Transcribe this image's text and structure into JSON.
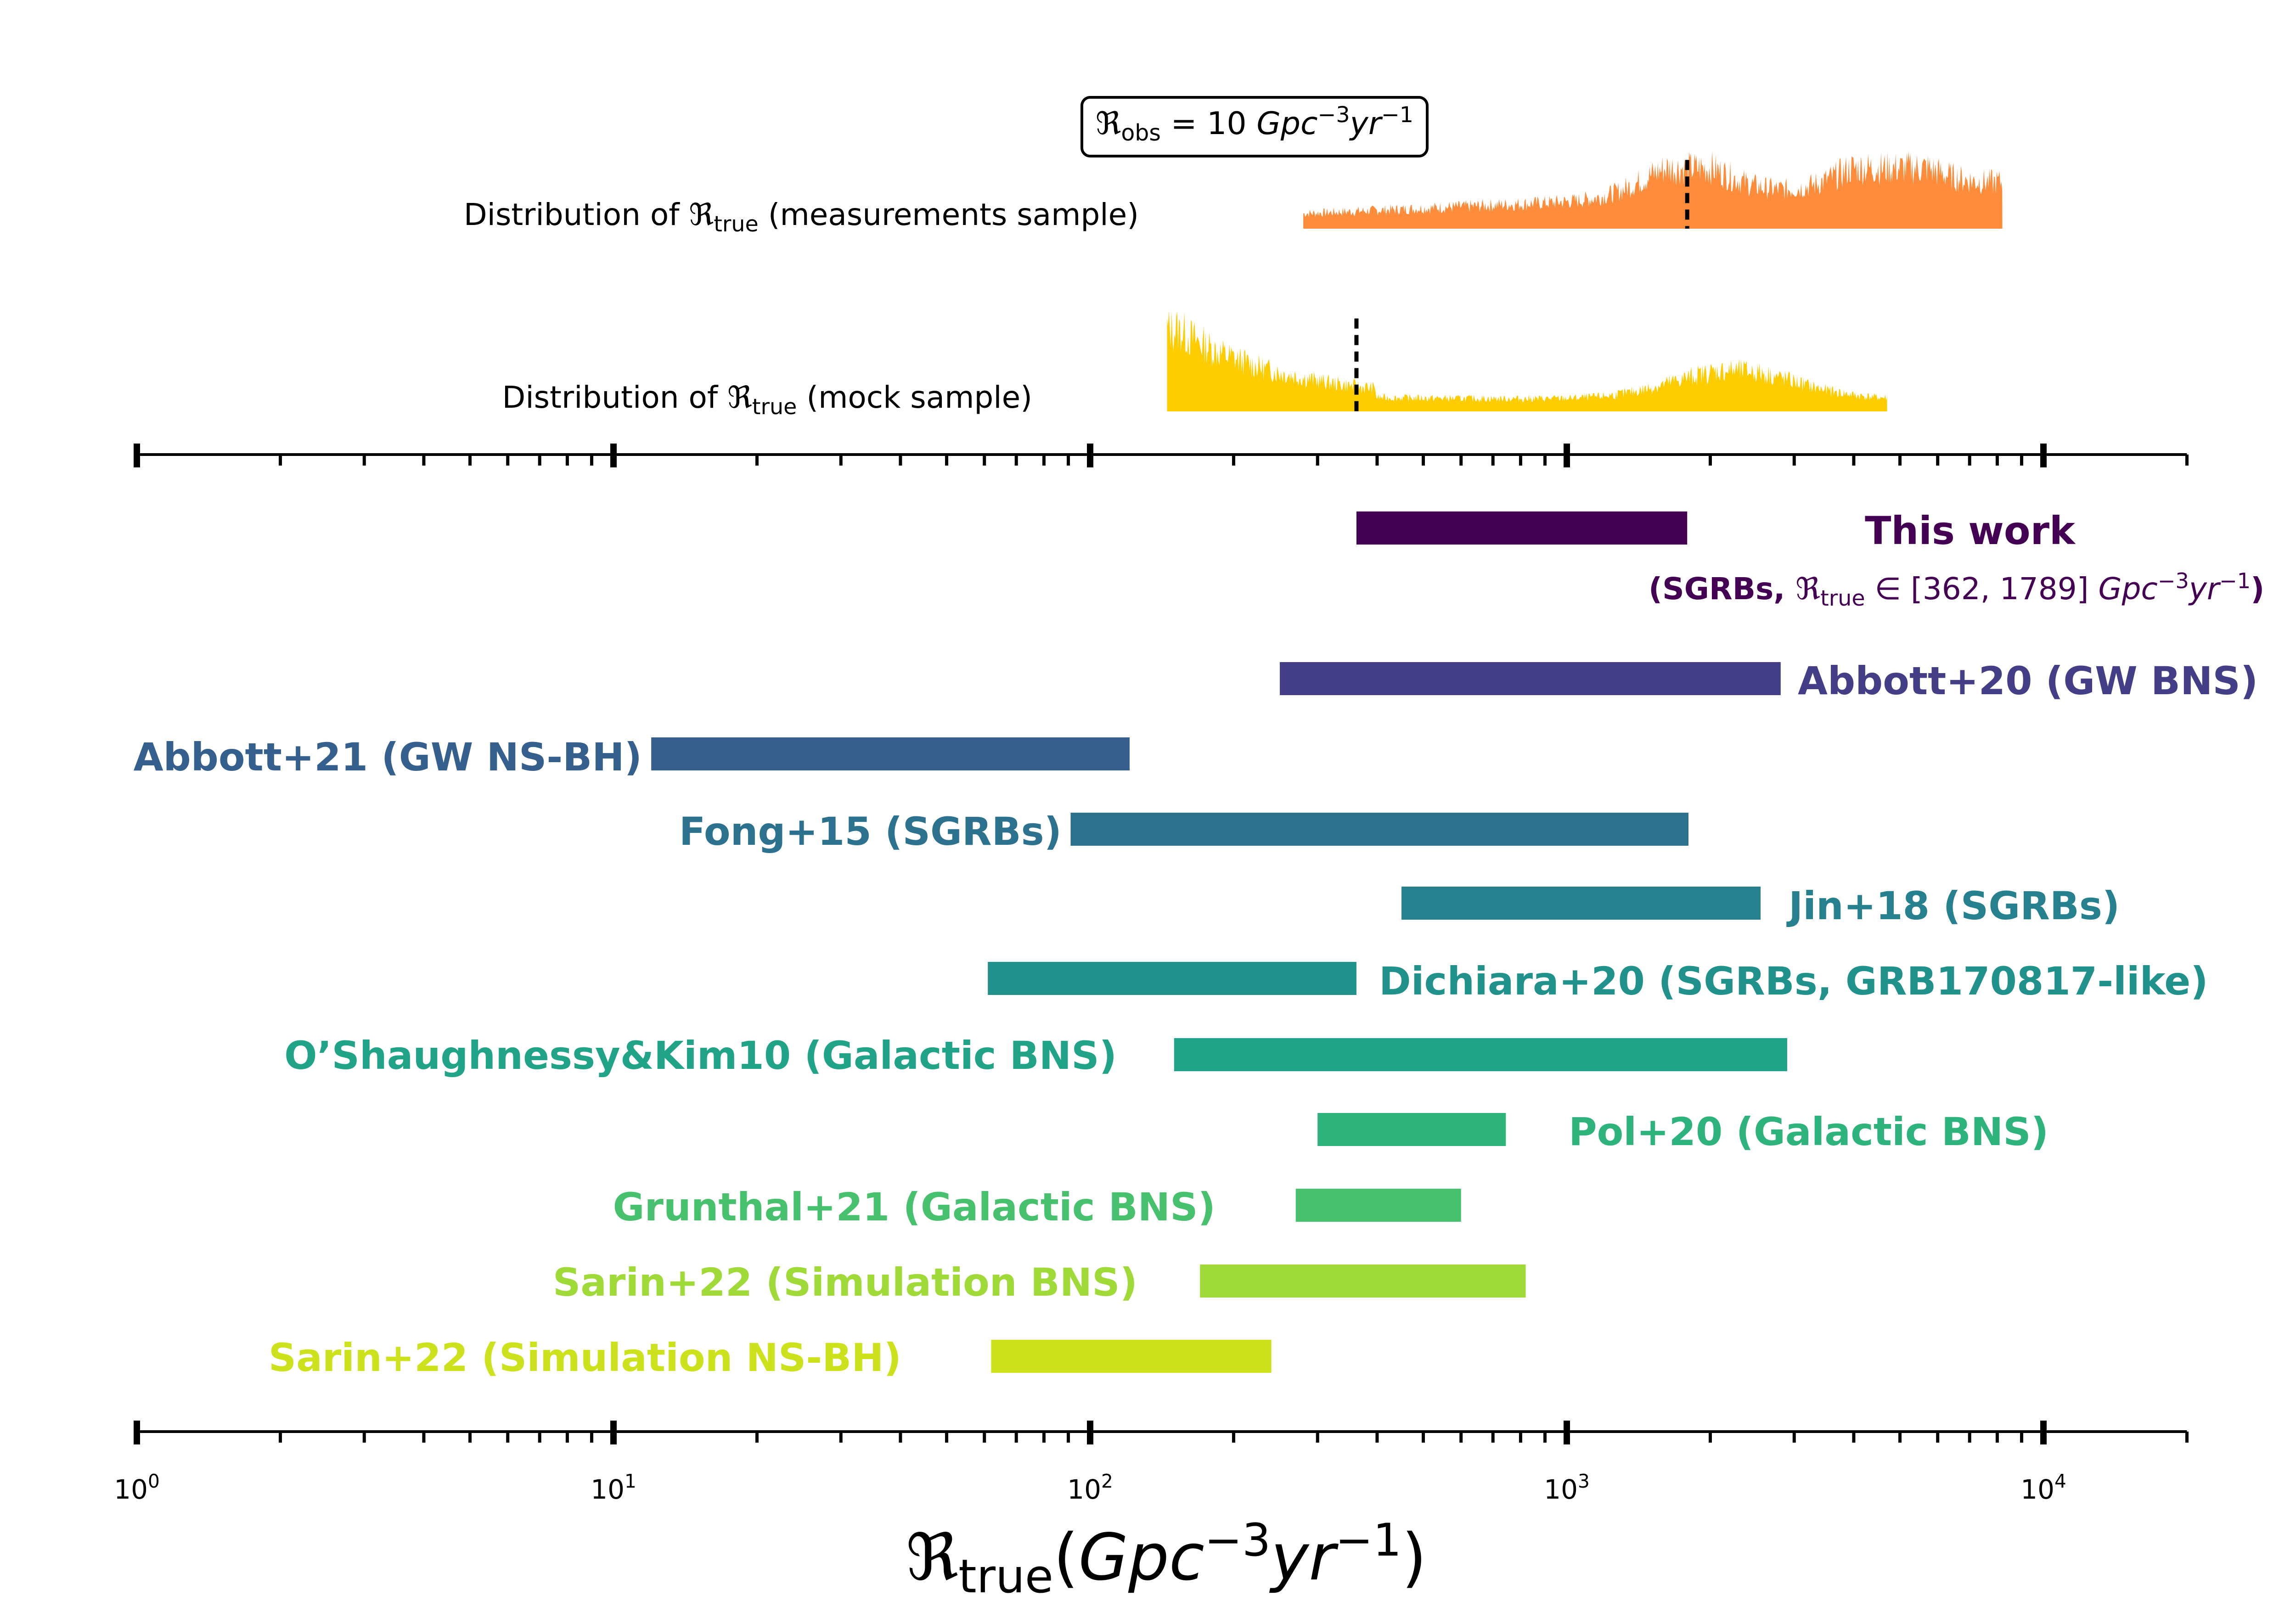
{
  "chart_data": {
    "type": "range_bar",
    "x_scale": "log",
    "xlim": [
      1,
      20000
    ],
    "xlabel": {
      "symbol": "ℜ",
      "subscript": "true",
      "unit_open": "(Gpc",
      "exp1": "−3",
      "unit_mid": "yr",
      "exp2": "−1",
      "unit_close": ")"
    },
    "tick_labels": [
      {
        "value": 1,
        "base": "10",
        "exp": "0"
      },
      {
        "value": 10,
        "base": "10",
        "exp": "1"
      },
      {
        "value": 100,
        "base": "10",
        "exp": "2"
      },
      {
        "value": 1000,
        "base": "10",
        "exp": "3"
      },
      {
        "value": 10000,
        "base": "10",
        "exp": "4"
      }
    ],
    "annotation": {
      "symbol": "ℜ",
      "subscript": "obs",
      "text": " = 10 ",
      "unit1": "Gpc",
      "exp1": "−3",
      "unit2": "yr",
      "exp2": "−1"
    },
    "distributions": [
      {
        "label_pre": "Distribution of ",
        "symbol": "ℜ",
        "subscript": "true",
        "label_post": " (measurements sample)",
        "range": [
          280,
          8200
        ],
        "marker": 1789,
        "color": "#ff8c3a"
      },
      {
        "label_pre": "Distribution of ",
        "symbol": "ℜ",
        "subscript": "true",
        "label_post": " (mock sample)",
        "range": [
          145,
          4700
        ],
        "marker": 362,
        "color": "#ffcc00"
      }
    ],
    "bars": [
      {
        "label": "This work",
        "low": 362,
        "high": 1789,
        "color": "#440154",
        "label_pos": "right"
      },
      {
        "label": "Abbott+20 (GW BNS)",
        "low": 250,
        "high": 2810,
        "color": "#433e85",
        "label_pos": "right"
      },
      {
        "label": "Abbott+21 (GW NS-BH)",
        "low": 12,
        "high": 121,
        "color": "#355f8d",
        "label_pos": "left"
      },
      {
        "label": "Fong+15 (SGRBs)",
        "low": 91,
        "high": 1800,
        "color": "#2c728e",
        "label_pos": "left"
      },
      {
        "label": "Jin+18 (SGRBs)",
        "low": 450,
        "high": 2550,
        "color": "#27808e",
        "label_pos": "right"
      },
      {
        "label": "Dichiara+20 (SGRBs, GRB170817-like)",
        "low": 61,
        "high": 362,
        "color": "#21918c",
        "label_pos": "right"
      },
      {
        "label": "O’Shaughnessy&Kim10 (Galactic BNS)",
        "low": 150,
        "high": 2900,
        "color": "#20a386",
        "label_pos": "left"
      },
      {
        "label": "Pol+20 (Galactic BNS)",
        "low": 300,
        "high": 745,
        "color": "#2eb37c",
        "label_pos": "right"
      },
      {
        "label": "Grunthal+21 (Galactic BNS)",
        "low": 270,
        "high": 600,
        "color": "#47c16e",
        "label_pos": "left"
      },
      {
        "label": "Sarin+22 (Simulation BNS)",
        "low": 170,
        "high": 820,
        "color": "#a0da39",
        "label_pos": "left"
      },
      {
        "label": "Sarin+22 (Simulation NS-BH)",
        "low": 62,
        "high": 240,
        "color": "#cde11d",
        "label_pos": "left"
      }
    ],
    "this_work_note": {
      "prefix": "(SGRBs, ",
      "symbol": "ℜ",
      "subscript": "true",
      "text": " ∈ [362, 1789] ",
      "unit1": "Gpc",
      "exp1": "−3",
      "unit2": "yr",
      "exp2": "−1",
      "suffix": ")"
    }
  }
}
